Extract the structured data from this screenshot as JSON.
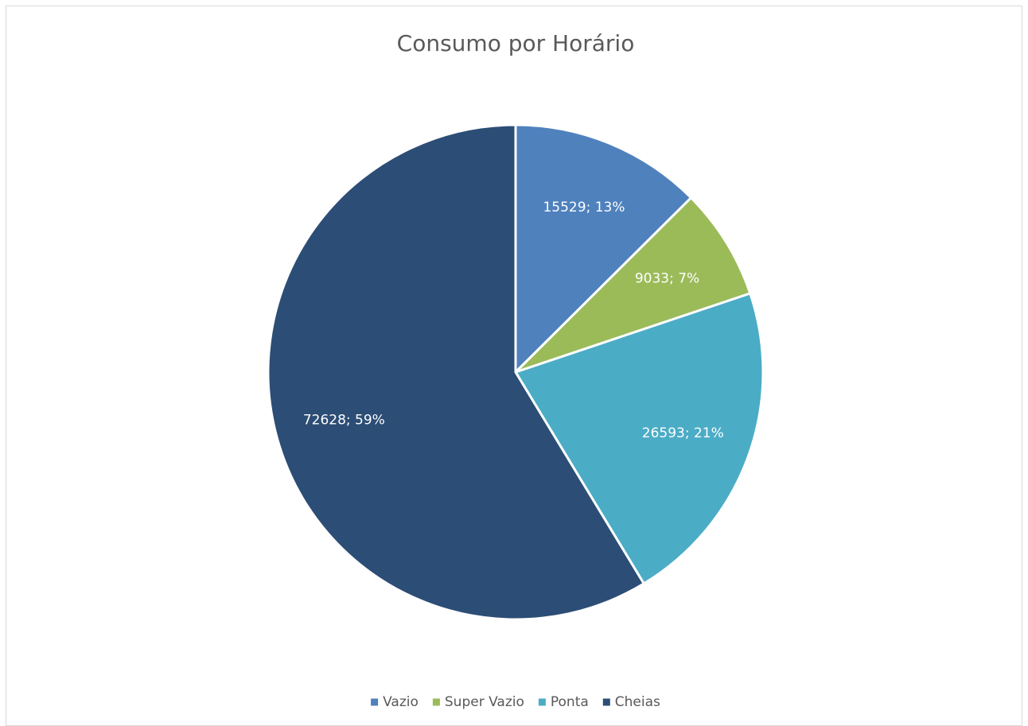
{
  "chart_data": {
    "type": "pie",
    "title": "Consumo por Horário",
    "categories": [
      "Vazio",
      "Super Vazio",
      "Ponta",
      "Cheias"
    ],
    "values": [
      15529,
      9033,
      26593,
      72628
    ],
    "value_labels": [
      "15529; 13%",
      "9033; 7%",
      "26593; 21%",
      "72628; 59%"
    ],
    "colors": [
      "#4f81bd",
      "#9bbb59",
      "#4bacc6",
      "#2c4d75"
    ],
    "legend": "bottom"
  }
}
